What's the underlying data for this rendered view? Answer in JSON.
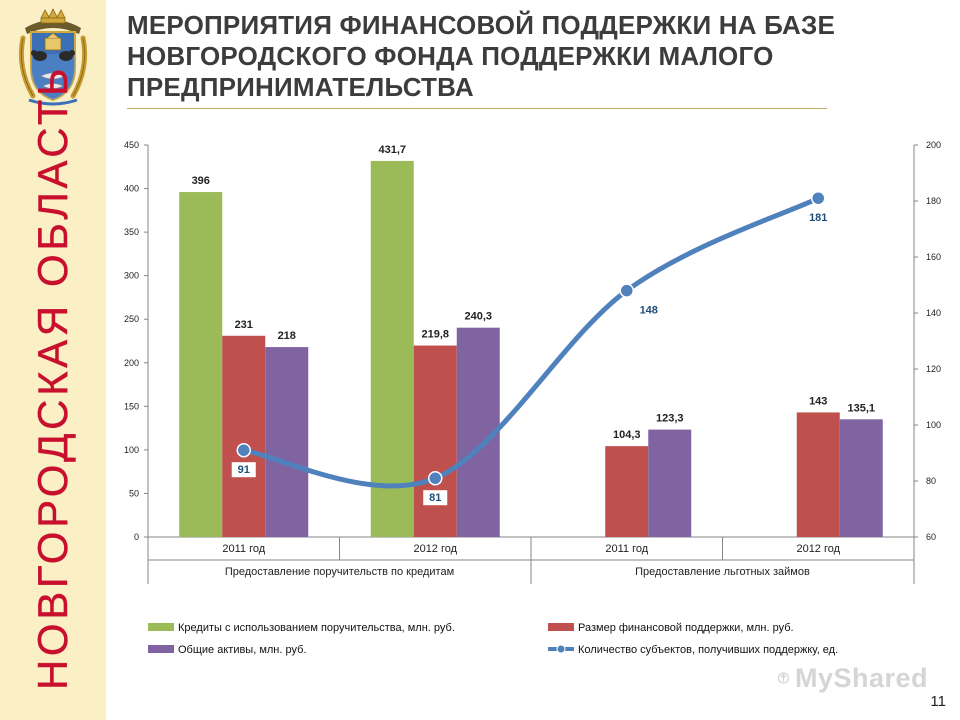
{
  "title": "МЕРОПРИЯТИЯ ФИНАНСОВОЙ ПОДДЕРЖКИ НА БАЗЕ НОВГОРОДСКОГО ФОНДА ПОДДЕРЖКИ МАЛОГО ПРЕДПРИНИМАТЕЛЬСТВА",
  "sidebar": {
    "region_name": "НОВГОРОДСКАЯ ОБЛАСТЬ",
    "emblem_icon": "novgorod-coat-of-arms-icon"
  },
  "watermark": "MyShared",
  "page_number": "11",
  "colors": {
    "green": "#9bbb59",
    "red": "#c0504d",
    "purple": "#8064a2",
    "line": "#4f81bd",
    "sidebar": "#fbefc6",
    "region_text": "#c8102e"
  },
  "chart_data": {
    "type": "bar",
    "categories": [
      "2011 год",
      "2012 год",
      "2011 год",
      "2012 год"
    ],
    "category_groups": [
      {
        "label": "Предоставление поручительств по кредитам",
        "span": [
          0,
          1
        ]
      },
      {
        "label": "Предоставление льготных займов",
        "span": [
          2,
          3
        ]
      }
    ],
    "series": [
      {
        "name": "Кредиты с использованием поручительства, млн. руб.",
        "type": "bar",
        "axis": "left",
        "color": "#9bbb59",
        "values": [
          396,
          431.7,
          null,
          null
        ],
        "labels": [
          "396",
          "431,7",
          "",
          ""
        ]
      },
      {
        "name": "Размер финансовой поддержки, млн. руб.",
        "type": "bar",
        "axis": "left",
        "color": "#c0504d",
        "values": [
          231,
          219.8,
          104.3,
          143
        ],
        "labels": [
          "231",
          "219,8",
          "104,3",
          "143"
        ]
      },
      {
        "name": "Общие активы, млн. руб.",
        "type": "bar",
        "axis": "left",
        "color": "#8064a2",
        "values": [
          218,
          240.3,
          123.3,
          135.1
        ],
        "labels": [
          "218",
          "240,3",
          "123,3",
          "135,1"
        ]
      },
      {
        "name": "Количество субъектов, получивших поддержку, ед.",
        "type": "line",
        "axis": "right",
        "color": "#4f81bd",
        "values": [
          91,
          81,
          148,
          181
        ],
        "labels": [
          "91",
          "81",
          "148",
          "181"
        ]
      }
    ],
    "y_left": {
      "min": 0,
      "max": 450,
      "ticks": [
        0,
        50,
        100,
        150,
        200,
        250,
        300,
        350,
        400,
        450
      ]
    },
    "y_right": {
      "min": 60,
      "max": 200,
      "ticks": [
        60,
        80,
        100,
        120,
        140,
        160,
        180,
        200
      ]
    },
    "grid": false,
    "legend_position": "bottom"
  }
}
